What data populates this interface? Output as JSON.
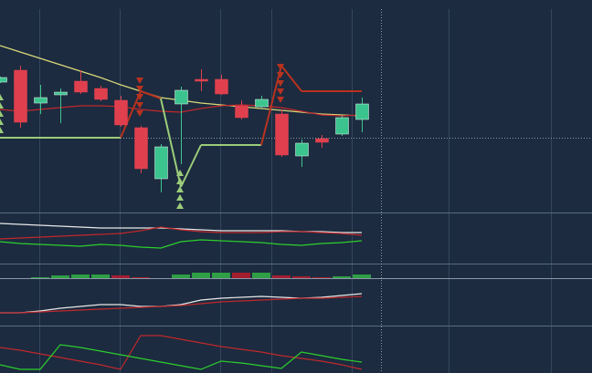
{
  "chart_data": [
    {
      "type": "candlestick",
      "categories": [
        null,
        null,
        null,
        null,
        null,
        null,
        null,
        null,
        null,
        null,
        null,
        null,
        null,
        null,
        null,
        null,
        null,
        null,
        null
      ],
      "open": [
        145,
        158,
        122,
        131,
        146,
        138,
        125,
        95,
        39,
        121,
        148,
        148,
        119,
        118,
        110,
        64,
        83,
        88,
        104
      ],
      "high": [
        151,
        163,
        142,
        138,
        158,
        141,
        130,
        97,
        77,
        140,
        159,
        153,
        125,
        130,
        115,
        82,
        87,
        108,
        128
      ],
      "low": [
        144,
        95,
        110,
        100,
        132,
        124,
        96,
        45,
        24,
        55,
        135,
        131,
        104,
        116,
        63,
        52,
        73,
        86,
        90
      ],
      "close": [
        150,
        101,
        128,
        134,
        134,
        126,
        98,
        50,
        74,
        136,
        146,
        132,
        106,
        126,
        65,
        78,
        79,
        106,
        121
      ],
      "up_color": "#3cc48f",
      "down_color": "#e0404e",
      "lines": [
        {
          "color": "#d9d97a",
          "values": [
            185,
            178,
            171,
            164,
            157,
            150,
            142,
            135,
            128,
            125,
            122,
            120,
            118,
            116,
            114,
            112,
            110,
            109,
            108
          ]
        },
        {
          "color": "#c0282c",
          "values": [
            115,
            113,
            115,
            117,
            119,
            119,
            118,
            115,
            113,
            112,
            116,
            119,
            120,
            119,
            117,
            113,
            109,
            108,
            109
          ]
        }
      ],
      "trail": {
        "values": [
          84,
          84,
          84,
          84,
          84,
          84,
          84,
          135,
          127,
          30,
          76,
          76,
          76,
          76,
          163,
          135,
          135,
          135,
          135
        ],
        "colors": [
          "#9ccc7a",
          "#9ccc7a",
          "#9ccc7a",
          "#9ccc7a",
          "#9ccc7a",
          "#9ccc7a",
          "#9ccc7a",
          "#b8321f",
          "#b8321f",
          "#9ccc7a",
          "#9ccc7a",
          "#9ccc7a",
          "#9ccc7a",
          "#9ccc7a",
          "#b8321f",
          "#b8321f",
          "#b8321f",
          "#b8321f",
          "#b8321f"
        ]
      },
      "ylim": [
        0,
        225
      ]
    },
    {
      "type": "line",
      "categories": [
        null,
        null,
        null,
        null,
        null,
        null,
        null,
        null,
        null,
        null,
        null,
        null,
        null,
        null,
        null,
        null,
        null,
        null,
        null
      ],
      "series": [
        {
          "color": "#e8e8e8",
          "values": [
            45,
            44,
            43,
            42,
            41,
            40,
            40,
            40,
            40,
            39,
            38,
            37,
            37,
            37,
            37,
            36,
            36,
            35,
            35
          ]
        },
        {
          "color": "#c0282c",
          "values": [
            28,
            29,
            30,
            31,
            32,
            33,
            34,
            37,
            41,
            38,
            36,
            35,
            35,
            35,
            36,
            36,
            35,
            34,
            32
          ]
        },
        {
          "color": "#2ccf2c",
          "values": [
            25,
            23,
            22,
            21,
            20,
            22,
            21,
            19,
            18,
            25,
            27,
            26,
            25,
            24,
            22,
            21,
            23,
            24,
            26
          ]
        }
      ],
      "ylim": [
        0,
        55
      ]
    },
    {
      "type": "bar",
      "categories": [
        null,
        null,
        null,
        null,
        null,
        null,
        null,
        null,
        null,
        null,
        null,
        null,
        null,
        null,
        null,
        null,
        null,
        null,
        null
      ],
      "values": [
        0,
        0,
        1,
        3,
        4,
        4,
        3,
        1,
        0,
        4,
        6,
        6,
        6,
        6,
        3,
        2,
        1,
        2,
        4
      ],
      "colors": [
        "#2f9e44",
        "#2f9e44",
        "#2f9e44",
        "#2f9e44",
        "#2f9e44",
        "#2f9e44",
        "#a31f30",
        "#a31f30",
        "#2f9e44",
        "#2f9e44",
        "#2f9e44",
        "#2f9e44",
        "#a31f30",
        "#2f9e44",
        "#a31f30",
        "#a31f30",
        "#a31f30",
        "#2f9e44",
        "#2f9e44"
      ],
      "ylim": [
        0,
        15
      ]
    },
    {
      "type": "line",
      "categories": [
        null,
        null,
        null,
        null,
        null,
        null,
        null,
        null,
        null,
        null,
        null,
        null,
        null,
        null,
        null,
        null,
        null,
        null,
        null
      ],
      "series": [
        {
          "color": "#e8e8e8",
          "values": [
            15,
            15,
            17,
            20,
            22,
            24,
            24,
            22,
            22,
            24,
            29,
            31,
            32,
            33,
            32,
            31,
            32,
            34,
            36
          ]
        },
        {
          "color": "#c0282c",
          "values": [
            15,
            15,
            16,
            17,
            18,
            19,
            20,
            21,
            22,
            23,
            25,
            27,
            28,
            29,
            30,
            31,
            31,
            32,
            33
          ]
        }
      ],
      "ylim": [
        0,
        53
      ]
    },
    {
      "type": "line",
      "categories": [
        null,
        null,
        null,
        null,
        null,
        null,
        null,
        null,
        null,
        null,
        null,
        null,
        null,
        null,
        null,
        null,
        null,
        null,
        null
      ],
      "series": [
        {
          "color": "#c0282c",
          "values": [
            28,
            25,
            21,
            17,
            13,
            9,
            4,
            41,
            41,
            37,
            33,
            29,
            26,
            23,
            19,
            16,
            13,
            9,
            4
          ]
        },
        {
          "color": "#2ccf2c",
          "values": [
            9,
            4,
            4,
            31,
            28,
            24,
            20,
            16,
            12,
            8,
            4,
            13,
            11,
            8,
            5,
            23,
            19,
            15,
            12
          ]
        }
      ],
      "ylim": [
        0,
        51
      ]
    }
  ]
}
